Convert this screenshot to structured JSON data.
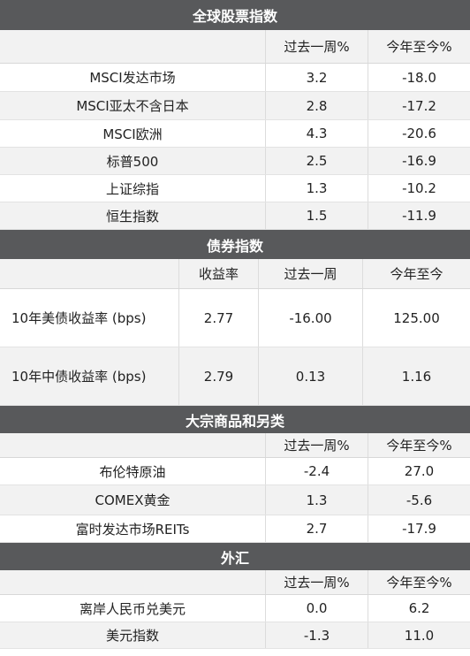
{
  "equity": {
    "title": "全球股票指数",
    "col_week": "过去一周%",
    "col_ytd": "今年至今%",
    "rows": [
      {
        "name": "MSCI发达市场",
        "week": "3.2",
        "ytd": "-18.0"
      },
      {
        "name": "MSCI亚太不含日本",
        "week": "2.8",
        "ytd": "-17.2"
      },
      {
        "name": "MSCI欧洲",
        "week": "4.3",
        "ytd": "-20.6"
      },
      {
        "name": "标普500",
        "week": "2.5",
        "ytd": "-16.9"
      },
      {
        "name": "上证综指",
        "week": "1.3",
        "ytd": "-10.2"
      },
      {
        "name": "恒生指数",
        "week": "1.5",
        "ytd": "-11.9"
      }
    ]
  },
  "bond": {
    "title": "债券指数",
    "col_yield": "收益率",
    "col_week": "过去一周",
    "col_ytd": "今年至今",
    "rows": [
      {
        "name": "10年美债收益率 (bps)",
        "yield": "2.77",
        "week": "-16.00",
        "ytd": "125.00"
      },
      {
        "name": "10年中债收益率 (bps)",
        "yield": "2.79",
        "week": "0.13",
        "ytd": "1.16"
      }
    ]
  },
  "commodity": {
    "title": "大宗商品和另类",
    "col_week": "过去一周%",
    "col_ytd": "今年至今%",
    "rows": [
      {
        "name": "布伦特原油",
        "week": "-2.4",
        "ytd": "27.0"
      },
      {
        "name": "COMEX黄金",
        "week": "1.3",
        "ytd": "-5.6"
      },
      {
        "name": "富时发达市场REITs",
        "week": "2.7",
        "ytd": "-17.9"
      }
    ]
  },
  "fx": {
    "title": "外汇",
    "col_week": "过去一周%",
    "col_ytd": "今年至今%",
    "rows": [
      {
        "name": "离岸人民币兑美元",
        "week": "0.0",
        "ytd": "6.2"
      },
      {
        "name": "美元指数",
        "week": "-1.3",
        "ytd": "11.0"
      }
    ]
  },
  "colors": {
    "header_bg": "#58595b",
    "shade_bg": "#f2f2f2"
  }
}
